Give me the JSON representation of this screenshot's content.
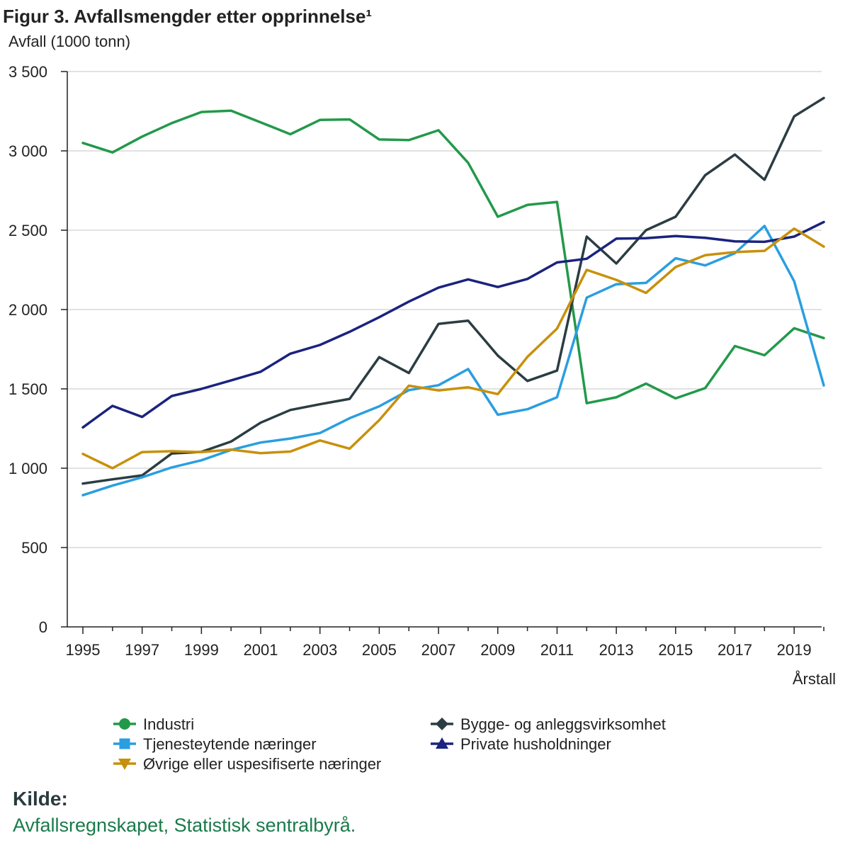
{
  "header": {
    "title": "Figur 3. Avfallsmengder etter opprinnelse¹",
    "ylabel": "Avfall (1000 tonn)"
  },
  "source": {
    "heading": "Kilde:",
    "text": "Avfallsregnskapet, Statistisk sentralbyrå."
  },
  "chart_data": {
    "type": "line",
    "title": "Figur 3. Avfallsmengder etter opprinnelse¹",
    "xlabel": "Årstall",
    "ylabel": "Avfall (1000 tonn)",
    "ylim": [
      0,
      3500
    ],
    "yticks": [
      0,
      500,
      1000,
      1500,
      2000,
      2500,
      3000,
      3500
    ],
    "ytick_labels": [
      "0",
      "500",
      "1 000",
      "1 500",
      "2 000",
      "2 500",
      "3 000",
      "3 500"
    ],
    "xtick_labels": [
      "1995",
      "1997",
      "1999",
      "2001",
      "2003",
      "2005",
      "2007",
      "2009",
      "2011",
      "2013",
      "2015",
      "2017",
      "2019"
    ],
    "grid": true,
    "legend_position": "bottom",
    "x": [
      1995,
      1996,
      1997,
      1998,
      1999,
      2000,
      2001,
      2002,
      2003,
      2004,
      2005,
      2006,
      2007,
      2008,
      2009,
      2010,
      2011,
      2012,
      2013,
      2014,
      2015,
      2016,
      2017,
      2018,
      2019,
      2020
    ],
    "series": [
      {
        "name": "Industri",
        "color": "#22994a",
        "marker": "circle",
        "values": [
          3050,
          2990,
          3090,
          3175,
          3245,
          3253,
          3180,
          3105,
          3195,
          3198,
          3072,
          3068,
          3130,
          2925,
          2585,
          2660,
          2678,
          1410,
          1447,
          1533,
          1440,
          1505,
          1770,
          1712,
          1882,
          1820
        ]
      },
      {
        "name": "Bygge- og anleggsvirksomhet",
        "color": "#2b3d42",
        "marker": "diamond",
        "values": [
          903,
          930,
          955,
          1093,
          1103,
          1168,
          1287,
          1367,
          1403,
          1437,
          1700,
          1600,
          1910,
          1930,
          1710,
          1550,
          1615,
          2460,
          2290,
          2500,
          2585,
          2847,
          2977,
          2818,
          3218,
          3333
        ]
      },
      {
        "name": "Tjenesteytende næringer",
        "color": "#2a9ee0",
        "marker": "square",
        "values": [
          830,
          890,
          943,
          1005,
          1050,
          1115,
          1162,
          1187,
          1222,
          1315,
          1390,
          1492,
          1523,
          1625,
          1337,
          1372,
          1447,
          2075,
          2160,
          2168,
          2323,
          2278,
          2355,
          2527,
          2178,
          1522
        ]
      },
      {
        "name": "Private husholdninger",
        "color": "#1a237e",
        "marker": "triangle",
        "values": [
          1257,
          1393,
          1323,
          1455,
          1500,
          1553,
          1608,
          1722,
          1777,
          1860,
          1952,
          2050,
          2138,
          2190,
          2142,
          2193,
          2297,
          2320,
          2447,
          2450,
          2463,
          2452,
          2430,
          2427,
          2460,
          2552
        ]
      },
      {
        "name": "Øvrige eller uspesifiserte næringer",
        "color": "#c8900a",
        "marker": "triangle-down",
        "values": [
          1090,
          1000,
          1102,
          1107,
          1102,
          1117,
          1095,
          1105,
          1175,
          1123,
          1303,
          1520,
          1490,
          1510,
          1467,
          1702,
          1880,
          2250,
          2187,
          2105,
          2268,
          2343,
          2362,
          2370,
          2510,
          2397
        ]
      }
    ]
  }
}
